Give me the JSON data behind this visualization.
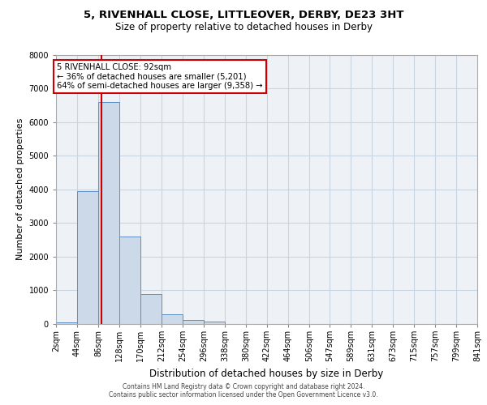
{
  "title1": "5, RIVENHALL CLOSE, LITTLEOVER, DERBY, DE23 3HT",
  "title2": "Size of property relative to detached houses in Derby",
  "xlabel": "Distribution of detached houses by size in Derby",
  "ylabel": "Number of detached properties",
  "annotation_title": "5 RIVENHALL CLOSE: 92sqm",
  "annotation_line2": "← 36% of detached houses are smaller (5,201)",
  "annotation_line3": "64% of semi-detached houses are larger (9,358) →",
  "property_size": 92,
  "bar_edges": [
    2,
    44,
    86,
    128,
    170,
    212,
    254,
    296,
    338,
    380,
    422,
    464,
    506,
    547,
    589,
    631,
    673,
    715,
    757,
    799,
    841
  ],
  "bar_heights": [
    50,
    3950,
    6600,
    2600,
    900,
    300,
    130,
    80,
    0,
    0,
    0,
    0,
    0,
    0,
    0,
    0,
    0,
    0,
    0,
    0
  ],
  "bar_color": "#ccd9e8",
  "bar_edge_color": "#5b8fc7",
  "grid_color": "#c8d4e0",
  "vline_color": "#cc0000",
  "vline_x": 92,
  "annotation_box_color": "#ffffff",
  "annotation_box_edge": "#cc0000",
  "ylim": [
    0,
    8000
  ],
  "yticks": [
    0,
    1000,
    2000,
    3000,
    4000,
    5000,
    6000,
    7000,
    8000
  ],
  "footer1": "Contains HM Land Registry data © Crown copyright and database right 2024.",
  "footer2": "Contains public sector information licensed under the Open Government Licence v3.0.",
  "bg_color": "#eef2f7"
}
